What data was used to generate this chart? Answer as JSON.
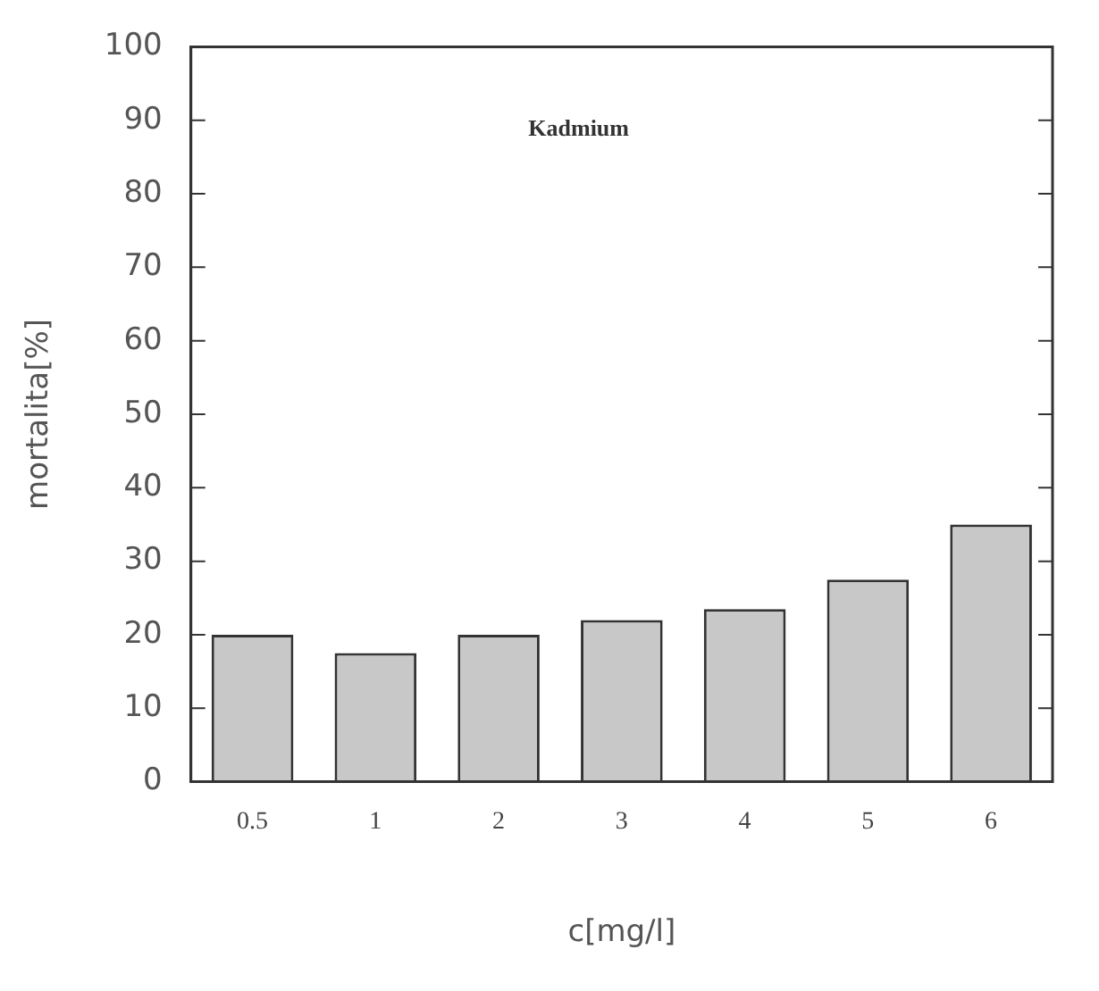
{
  "chart_data": {
    "type": "bar",
    "categories": [
      "0.5",
      "1",
      "2",
      "3",
      "4",
      "5",
      "6"
    ],
    "values": [
      20,
      17.5,
      20,
      22,
      23.5,
      27.5,
      35
    ],
    "color": "#c8c8c8",
    "ylim": [
      0,
      100
    ],
    "yticks": [
      0,
      10,
      20,
      30,
      40,
      50,
      60,
      70,
      80,
      90,
      100
    ],
    "xlabel": "c[mg/l]",
    "ylabel": "mortalita[%]",
    "annotations": [
      "Kadmium"
    ],
    "grid": false,
    "legend": false
  }
}
